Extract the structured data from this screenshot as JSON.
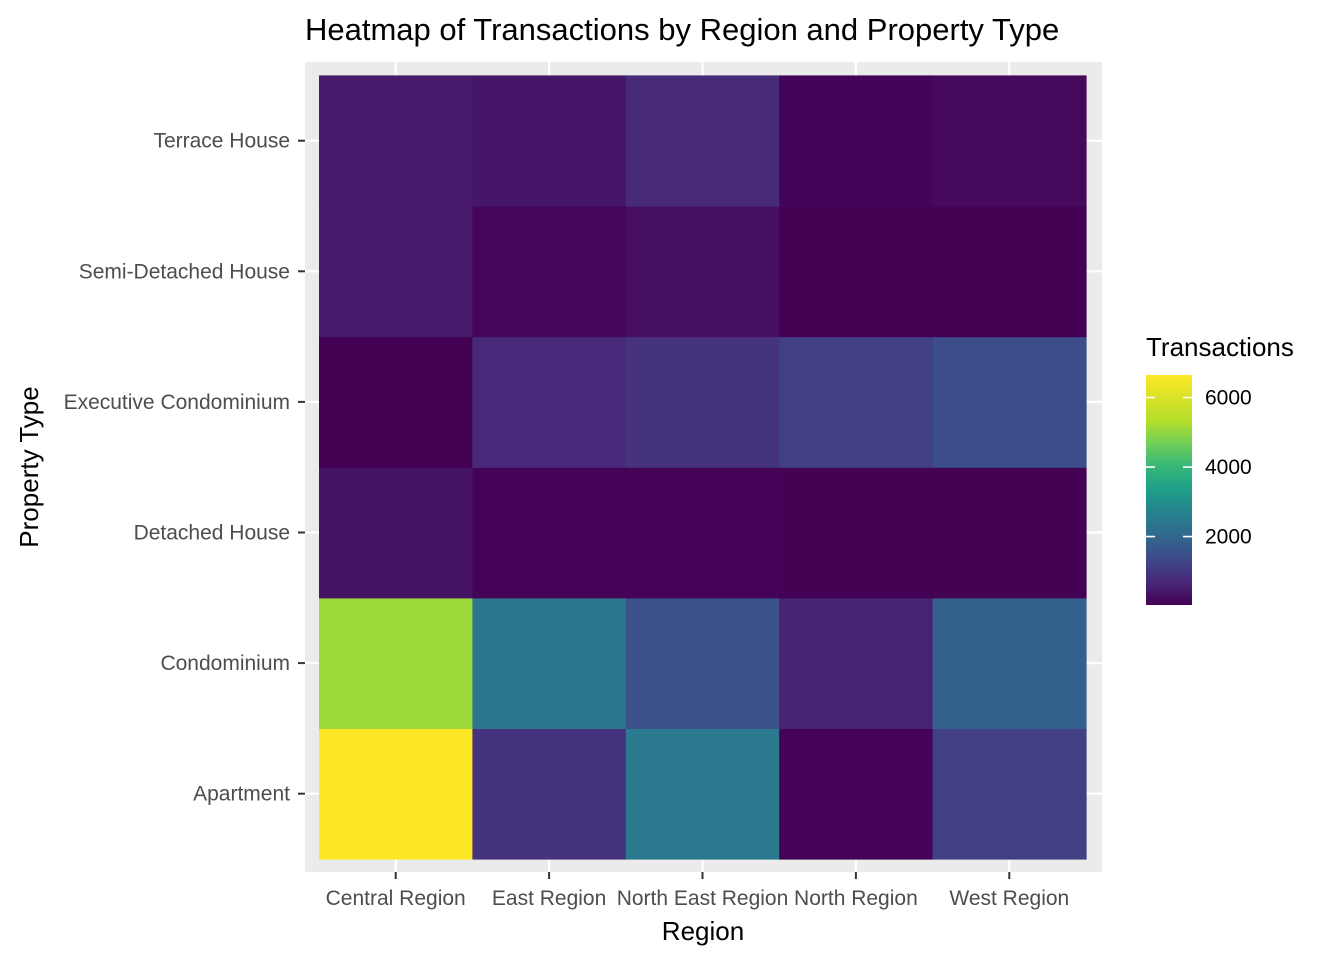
{
  "chart_data": {
    "type": "heatmap",
    "title": "Heatmap of Transactions by Region and Property Type",
    "xlabel": "Region",
    "ylabel": "Property Type",
    "x_categories": [
      "Central Region",
      "East Region",
      "North East Region",
      "North Region",
      "West Region"
    ],
    "y_categories": [
      "Apartment",
      "Condominium",
      "Detached House",
      "Executive Condominium",
      "Semi-Detached House",
      "Terrace House"
    ],
    "values": [
      [
        6650,
        900,
        2450,
        60,
        1150
      ],
      [
        5100,
        2400,
        1500,
        600,
        1850
      ],
      [
        350,
        70,
        60,
        40,
        50
      ],
      [
        30,
        700,
        900,
        1150,
        1450
      ],
      [
        450,
        120,
        250,
        40,
        30
      ],
      [
        450,
        400,
        750,
        100,
        180
      ]
    ],
    "colorscale": "viridis",
    "color_range": [
      30,
      6650
    ],
    "legend": {
      "title": "Transactions",
      "ticks": [
        {
          "value": 2000,
          "label": "2000"
        },
        {
          "value": 4000,
          "label": "4000"
        },
        {
          "value": 6000,
          "label": "6000"
        }
      ],
      "position": "right"
    },
    "panel_background": "#ebebeb",
    "grid": true
  }
}
